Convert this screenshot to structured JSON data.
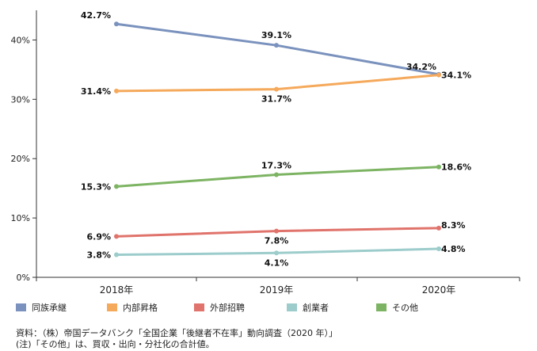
{
  "chart_data": {
    "type": "line",
    "categories": [
      "2018年",
      "2019年",
      "2020年"
    ],
    "ylim": [
      0,
      45
    ],
    "yticks": [
      0,
      10,
      20,
      30,
      40
    ],
    "ytick_labels": [
      "0%",
      "10%",
      "20%",
      "30%",
      "40%"
    ],
    "grid": false,
    "legend_position": "bottom",
    "series": [
      {
        "name": "同族承継",
        "color": "#7a92bd",
        "values": [
          42.7,
          39.1,
          34.2
        ],
        "labels": [
          "42.7%",
          "39.1%",
          "34.2%"
        ]
      },
      {
        "name": "内部昇格",
        "color": "#f5a95b",
        "values": [
          31.4,
          31.7,
          34.1
        ],
        "labels": [
          "31.4%",
          "31.7%",
          "34.1%"
        ]
      },
      {
        "name": "外部招聘",
        "color": "#e0736b",
        "values": [
          6.9,
          7.8,
          8.3
        ],
        "labels": [
          "6.9%",
          "7.8%",
          "8.3%"
        ]
      },
      {
        "name": "創業者",
        "color": "#9ccccb",
        "values": [
          3.8,
          4.1,
          4.8
        ],
        "labels": [
          "3.8%",
          "4.1%",
          "4.8%"
        ]
      },
      {
        "name": "その他",
        "color": "#7db463",
        "values": [
          15.3,
          17.3,
          18.6
        ],
        "labels": [
          "15.3%",
          "17.3%",
          "18.6%"
        ]
      }
    ]
  },
  "notes": {
    "source": "資料：（株）帝国データバンク「全国企業「後継者不在率」動向調査（2020 年）」",
    "note": "(注)「その他」は、買収・出向・分社化の合計値。"
  }
}
